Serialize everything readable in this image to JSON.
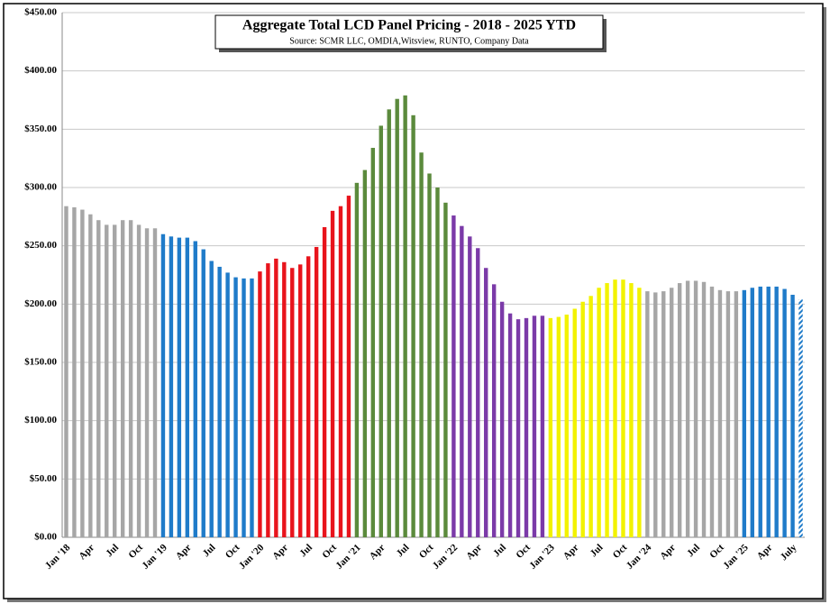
{
  "chart_data": {
    "type": "bar",
    "title": "Aggregate Total  LCD Panel Pricing - 2018 - 2025 YTD",
    "subtitle": "Source: SCMR LLC, OMDIA,Witsview,  RUNTO, Company Data",
    "categories": [
      "Jan '18",
      null,
      null,
      "Apr",
      null,
      null,
      "Jul",
      null,
      null,
      "Oct",
      null,
      null,
      "Jan '19",
      null,
      null,
      "Apr",
      null,
      null,
      "Jul",
      null,
      null,
      "Oct",
      null,
      null,
      "Jan '20",
      null,
      null,
      "Apr",
      null,
      null,
      "Jul",
      null,
      null,
      "Oct",
      null,
      null,
      "Jan '21",
      null,
      null,
      "Apr",
      null,
      null,
      "Jul",
      null,
      null,
      "Oct",
      null,
      null,
      "Jan '22",
      null,
      null,
      "Apr",
      null,
      null,
      "Jul",
      null,
      null,
      "Oct",
      null,
      null,
      "Jan '23",
      null,
      null,
      "Apr",
      null,
      null,
      "Jul",
      null,
      null,
      "Oct",
      null,
      null,
      "Jan '24",
      null,
      null,
      "Apr",
      null,
      null,
      "Jul",
      null,
      null,
      "Oct",
      null,
      null,
      "Jan '25",
      null,
      null,
      "Apr",
      null,
      null,
      "July",
      null
    ],
    "values": [
      284,
      283,
      281,
      277,
      272,
      268,
      268,
      272,
      272,
      268,
      265,
      265,
      260,
      258,
      257,
      257,
      254,
      247,
      237,
      232,
      227,
      223,
      222,
      222,
      228,
      235,
      239,
      236,
      231,
      234,
      241,
      249,
      266,
      280,
      284,
      293,
      304,
      315,
      334,
      353,
      367,
      376,
      379,
      362,
      330,
      312,
      300,
      287,
      276,
      267,
      258,
      248,
      231,
      217,
      202,
      192,
      187,
      188,
      190,
      190,
      188,
      189,
      191,
      196,
      202,
      207,
      214,
      218,
      221,
      221,
      218,
      214,
      211,
      210,
      211,
      214,
      218,
      220,
      220,
      219,
      215,
      212,
      211,
      211,
      212,
      214,
      215,
      215,
      215,
      213,
      208,
      204
    ],
    "colors": [
      "#a6a6a6",
      "#a6a6a6",
      "#a6a6a6",
      "#a6a6a6",
      "#a6a6a6",
      "#a6a6a6",
      "#a6a6a6",
      "#a6a6a6",
      "#a6a6a6",
      "#a6a6a6",
      "#a6a6a6",
      "#a6a6a6",
      "#1f7bc9",
      "#1f7bc9",
      "#1f7bc9",
      "#1f7bc9",
      "#1f7bc9",
      "#1f7bc9",
      "#1f7bc9",
      "#1f7bc9",
      "#1f7bc9",
      "#1f7bc9",
      "#1f7bc9",
      "#1f7bc9",
      "#e8141c",
      "#e8141c",
      "#e8141c",
      "#e8141c",
      "#e8141c",
      "#e8141c",
      "#e8141c",
      "#e8141c",
      "#e8141c",
      "#e8141c",
      "#e8141c",
      "#e8141c",
      "#5b8a3c",
      "#5b8a3c",
      "#5b8a3c",
      "#5b8a3c",
      "#5b8a3c",
      "#5b8a3c",
      "#5b8a3c",
      "#5b8a3c",
      "#5b8a3c",
      "#5b8a3c",
      "#5b8a3c",
      "#5b8a3c",
      "#7b3aa8",
      "#7b3aa8",
      "#7b3aa8",
      "#7b3aa8",
      "#7b3aa8",
      "#7b3aa8",
      "#7b3aa8",
      "#7b3aa8",
      "#7b3aa8",
      "#7b3aa8",
      "#7b3aa8",
      "#7b3aa8",
      "#f2f200",
      "#f2f200",
      "#f2f200",
      "#f2f200",
      "#f2f200",
      "#f2f200",
      "#f2f200",
      "#f2f200",
      "#f2f200",
      "#f2f200",
      "#f2f200",
      "#f2f200",
      "#a6a6a6",
      "#a6a6a6",
      "#a6a6a6",
      "#a6a6a6",
      "#a6a6a6",
      "#a6a6a6",
      "#a6a6a6",
      "#a6a6a6",
      "#a6a6a6",
      "#a6a6a6",
      "#a6a6a6",
      "#a6a6a6",
      "#1f7bc9",
      "#1f7bc9",
      "#1f7bc9",
      "#1f7bc9",
      "#1f7bc9",
      "#1f7bc9",
      "#1f7bc9",
      "#1f7bc9"
    ],
    "last_bar_hatched": true,
    "ylim": [
      0,
      450
    ],
    "yticks": [
      {
        "value": 0,
        "label": "$0.00"
      },
      {
        "value": 50,
        "label": "$50.00"
      },
      {
        "value": 100,
        "label": "$100.00"
      },
      {
        "value": 150,
        "label": "$150.00"
      },
      {
        "value": 200,
        "label": "$200.00"
      },
      {
        "value": 250,
        "label": "$250.00"
      },
      {
        "value": 300,
        "label": "$300.00"
      },
      {
        "value": 350,
        "label": "$350.00"
      },
      {
        "value": 400,
        "label": "$400.00"
      },
      {
        "value": 450,
        "label": "$450.00"
      }
    ],
    "grid": true
  }
}
